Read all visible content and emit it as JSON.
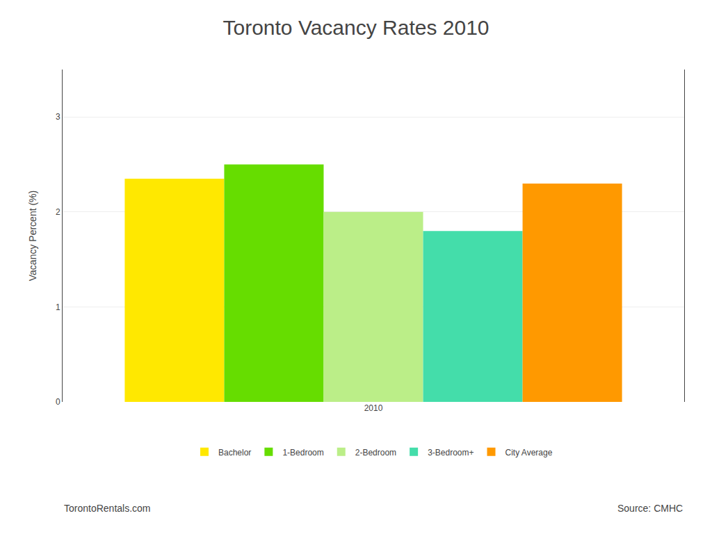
{
  "chart_data": {
    "type": "bar",
    "title": "Toronto Vacancy Rates 2010",
    "categories": [
      "2010"
    ],
    "series": [
      {
        "name": "Bachelor",
        "color": "#FFE800",
        "values": [
          2.35
        ]
      },
      {
        "name": "1-Bedroom",
        "color": "#66DD00",
        "values": [
          2.5
        ]
      },
      {
        "name": "2-Bedroom",
        "color": "#BBEE88",
        "values": [
          2.0
        ]
      },
      {
        "name": "3-Bedroom+",
        "color": "#44DDAA",
        "values": [
          1.8
        ]
      },
      {
        "name": "City Average",
        "color": "#FF9900",
        "values": [
          2.3
        ]
      }
    ],
    "ylabel": "Vacancy Percent (%)",
    "ylim": [
      0,
      3.5
    ],
    "yticks": [
      0,
      1,
      2,
      3
    ],
    "grid": true,
    "legend": "bottom",
    "annotations": [
      {
        "text": "TorontoRentals.com"
      },
      {
        "text": "Source: CMHC"
      }
    ]
  }
}
